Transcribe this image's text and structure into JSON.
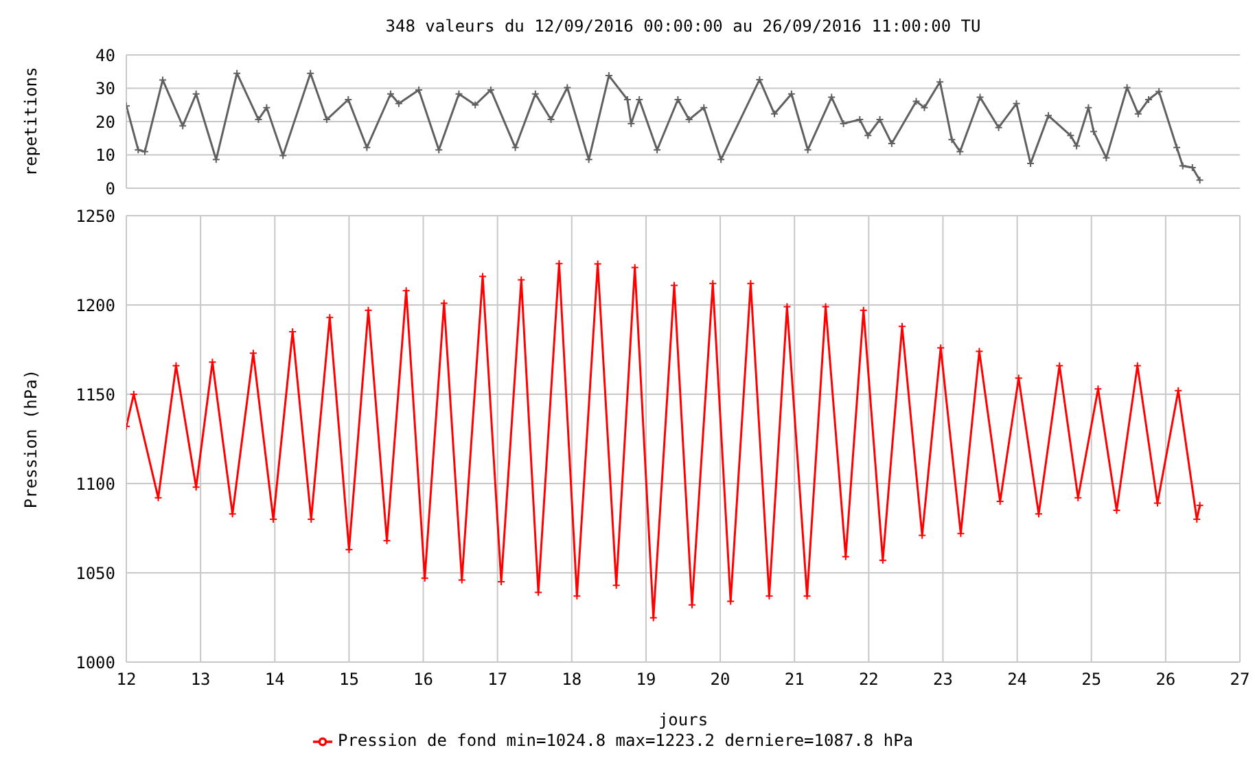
{
  "chart_data": [
    {
      "type": "line",
      "title": "348 valeurs du 12/09/2016 00:00:00 au 26/09/2016 11:00:00 TU",
      "ylabel": "repetitions",
      "xlim": [
        12,
        27
      ],
      "xticks": [
        12,
        13,
        14,
        15,
        16,
        17,
        18,
        19,
        20,
        21,
        22,
        23,
        24,
        25,
        26,
        27
      ],
      "ylim": [
        0,
        40
      ],
      "yticks": [
        0,
        10,
        20,
        30,
        40
      ],
      "grid": true,
      "tick_labels": "y",
      "marker": "cross",
      "line_style": "solid",
      "series": [
        {
          "color": "#606060",
          "x": [
            12.0,
            12.16,
            12.25,
            12.49,
            12.76,
            12.94,
            13.21,
            13.49,
            13.78,
            13.89,
            14.11,
            14.48,
            14.7,
            14.99,
            15.24,
            15.56,
            15.67,
            15.94,
            16.21,
            16.48,
            16.7,
            16.91,
            17.24,
            17.51,
            17.72,
            17.94,
            18.23,
            18.5,
            18.75,
            18.8,
            18.91,
            19.15,
            19.43,
            19.58,
            19.78,
            20.01,
            20.53,
            20.73,
            20.96,
            21.18,
            21.5,
            21.66,
            21.88,
            21.99,
            22.15,
            22.31,
            22.64,
            22.75,
            22.96,
            23.12,
            23.23,
            23.5,
            23.75,
            23.99,
            24.18,
            24.42,
            24.72,
            24.8,
            24.96,
            25.03,
            25.2,
            25.48,
            25.63,
            25.77,
            25.91,
            26.15,
            26.23,
            26.36,
            26.46
          ],
          "values": [
            24.7,
            11.5,
            11,
            32.5,
            18.7,
            28.3,
            8.6,
            34.5,
            20.6,
            24.2,
            9.8,
            34.5,
            20.6,
            26.6,
            12.2,
            28.3,
            25.4,
            29.5,
            11.5,
            28.3,
            25,
            29.5,
            12.2,
            28.3,
            20.6,
            30.2,
            8.6,
            33.8,
            26.6,
            19.4,
            26.6,
            11.5,
            26.6,
            20.6,
            24.2,
            8.6,
            32.6,
            22.3,
            28.3,
            11.5,
            27.3,
            19.4,
            20.6,
            15.8,
            20.6,
            13.4,
            26.1,
            24.2,
            31.9,
            14.6,
            11,
            27.3,
            18.2,
            25.4,
            7.4,
            21.8,
            15.8,
            12.7,
            24.2,
            17,
            9.1,
            30.2,
            22.3,
            26.6,
            29,
            12.2,
            6.7,
            6.2,
            2.4
          ]
        }
      ]
    },
    {
      "type": "line",
      "xlabel": "jours",
      "ylabel": "Pression (hPa)",
      "xlim": [
        12,
        27
      ],
      "xticks": [
        12,
        13,
        14,
        15,
        16,
        17,
        18,
        19,
        20,
        21,
        22,
        23,
        24,
        25,
        26,
        27
      ],
      "ylim": [
        1000,
        1250
      ],
      "yticks": [
        1000,
        1050,
        1100,
        1150,
        1200,
        1250
      ],
      "grid": true,
      "legend": "bottom",
      "marker": "cross",
      "line_style": "solid",
      "series": [
        {
          "name": "Pression de fond min=1024.8 max=1223.2 derniere=1087.8 hPa",
          "color": "#ff0000",
          "x": [
            12.0,
            12.1,
            12.43,
            12.67,
            12.94,
            13.16,
            13.43,
            13.71,
            13.98,
            14.24,
            14.49,
            14.74,
            15.0,
            15.26,
            15.51,
            15.77,
            16.02,
            16.28,
            16.52,
            16.8,
            17.05,
            17.32,
            17.55,
            17.83,
            18.07,
            18.35,
            18.6,
            18.85,
            19.1,
            19.38,
            19.62,
            19.9,
            20.14,
            20.41,
            20.66,
            20.9,
            21.17,
            21.42,
            21.69,
            21.93,
            22.19,
            22.45,
            22.72,
            22.97,
            23.24,
            23.49,
            23.77,
            24.02,
            24.29,
            24.57,
            24.82,
            25.09,
            25.34,
            25.62,
            25.89,
            26.17,
            26.42,
            26.46
          ],
          "values": [
            1132,
            1150,
            1092,
            1166,
            1098,
            1168,
            1083,
            1173,
            1080,
            1185,
            1080,
            1193,
            1063,
            1197,
            1068,
            1208,
            1047,
            1201,
            1046,
            1216,
            1045,
            1214,
            1039,
            1223.2,
            1037,
            1223,
            1043,
            1221,
            1024.8,
            1211,
            1032,
            1212,
            1034,
            1212,
            1037,
            1199,
            1037,
            1199,
            1059,
            1197,
            1057,
            1188,
            1071,
            1176,
            1072,
            1174,
            1090,
            1159,
            1083,
            1166,
            1092,
            1153,
            1085,
            1166,
            1089,
            1152,
            1080,
            1087.8
          ]
        }
      ]
    }
  ]
}
